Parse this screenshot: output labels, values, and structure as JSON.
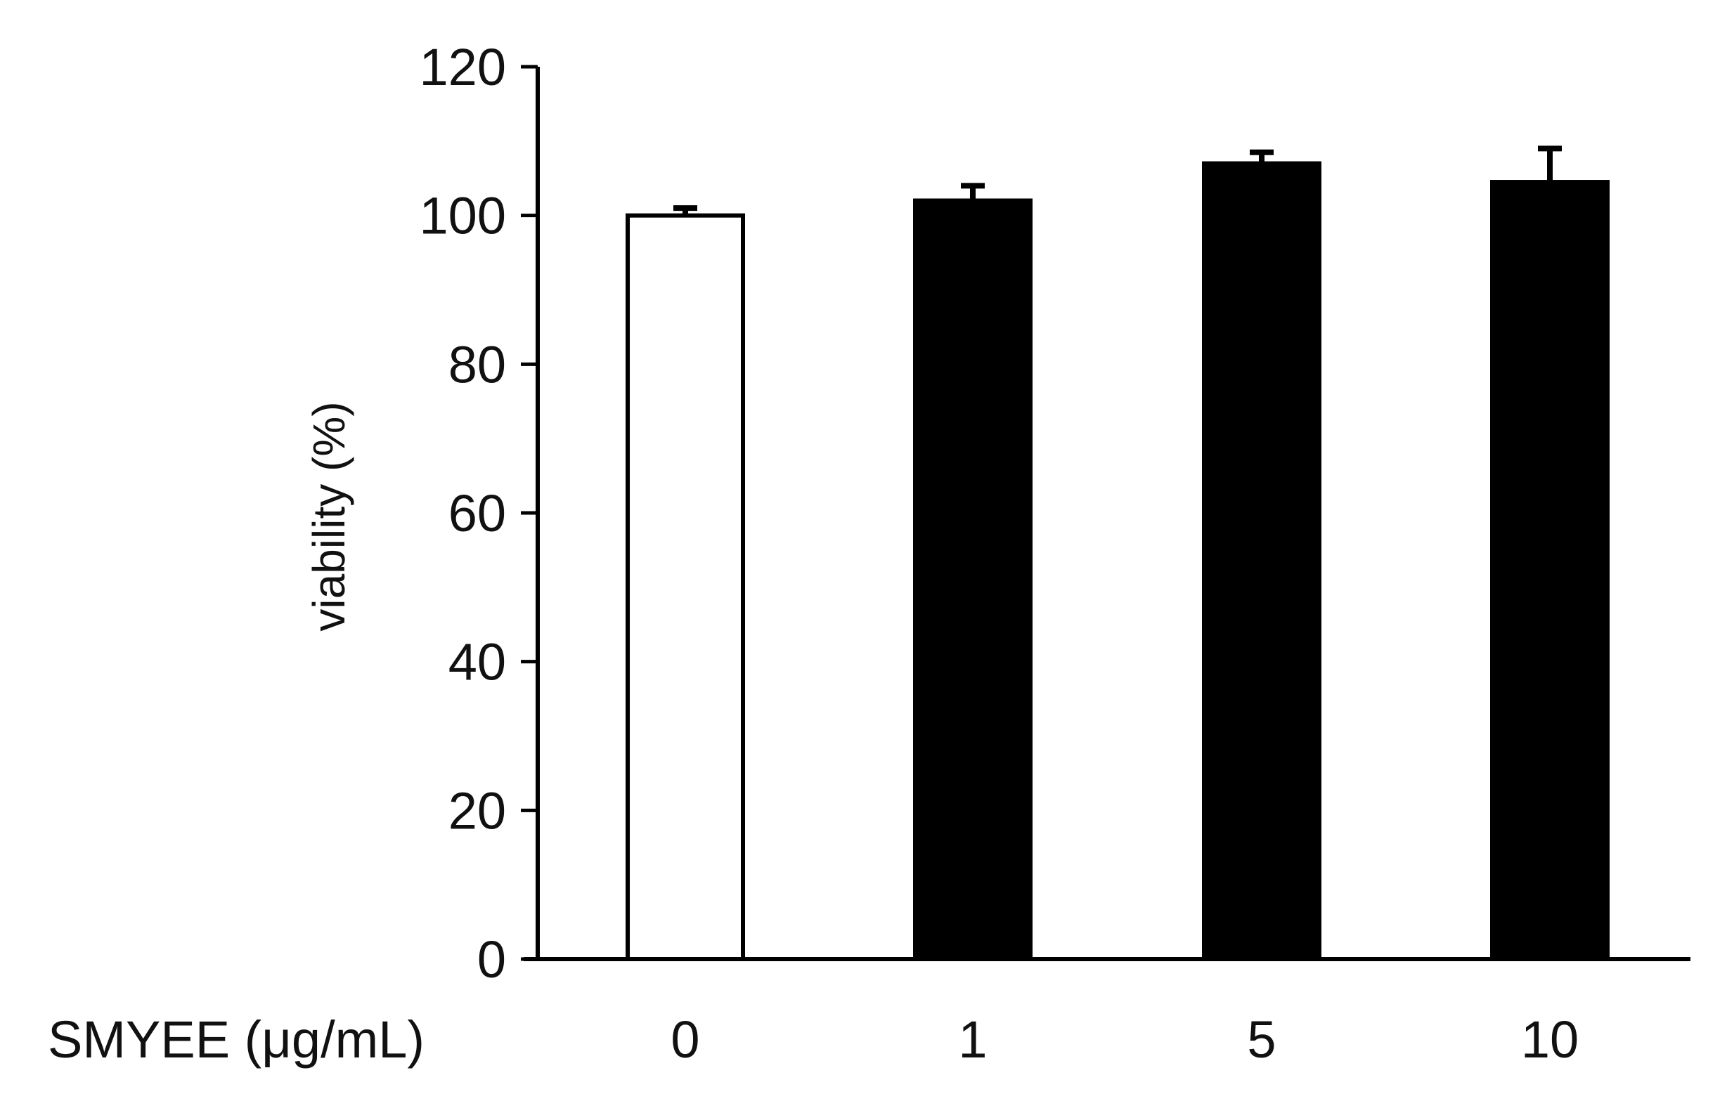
{
  "chart_data": {
    "type": "bar",
    "title": "",
    "xlabel": "SMYEE (μg/mL)",
    "ylabel": "viability (%)",
    "categories": [
      "0",
      "1",
      "5",
      "10"
    ],
    "values": [
      100,
      102,
      107,
      104.5
    ],
    "errors": [
      1,
      2,
      1.5,
      4.5
    ],
    "ylim": [
      0,
      120
    ],
    "yticks": [
      0,
      20,
      40,
      60,
      80,
      100,
      120
    ],
    "bar_colors": [
      "#ffffff",
      "#000000",
      "#000000",
      "#000000"
    ],
    "bar_edge_color": "#000000",
    "grid": false,
    "legend": "none"
  }
}
